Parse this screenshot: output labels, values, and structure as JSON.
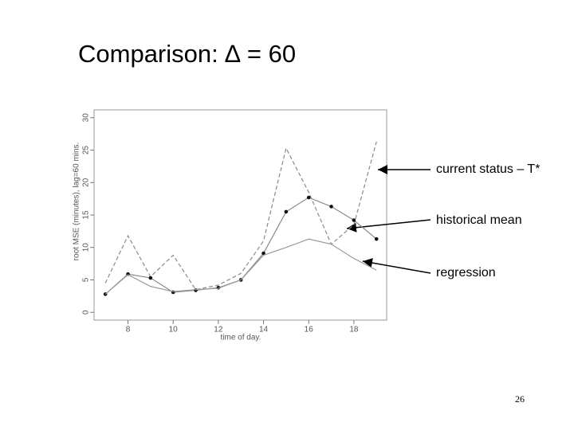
{
  "chart_data": {
    "type": "line",
    "title": "Comparison:  ∆ = 60",
    "x_label": "time of day.",
    "y_label": "root MSE (minutes), lag=60 mins.",
    "x": [
      7,
      8,
      9,
      10,
      11,
      12,
      13,
      14,
      15,
      16,
      17,
      18,
      19
    ],
    "series": [
      {
        "name": "current status – T*",
        "color": "#8a8a8a",
        "dashed": true,
        "markers": false,
        "values": [
          4.5,
          11.8,
          5.5,
          8.8,
          3.5,
          4.2,
          6,
          11,
          25.3,
          18.5,
          10.5,
          13.5,
          26.3
        ]
      },
      {
        "name": "historical mean",
        "color": "#8a8a8a",
        "dashed": false,
        "markers": true,
        "values": [
          2.8,
          5.9,
          5.3,
          3.1,
          3.4,
          3.8,
          5,
          9.1,
          15.5,
          17.7,
          16.3,
          14.2,
          11.3
        ]
      },
      {
        "name": "regression",
        "color": "#9a9a9a",
        "dashed": false,
        "markers": false,
        "values": [
          2.8,
          5.8,
          4,
          3.2,
          3.5,
          3.7,
          5,
          8.8,
          10,
          11.3,
          10.5,
          8.3,
          6.5
        ]
      }
    ],
    "xlim": [
      6.5,
      19.45
    ],
    "xticks": [
      8,
      10,
      12,
      14,
      16,
      18
    ],
    "ylim": [
      -1.2,
      31.2
    ],
    "yticks": [
      0,
      5,
      10,
      15,
      20,
      25,
      30
    ]
  },
  "page_number": "26"
}
